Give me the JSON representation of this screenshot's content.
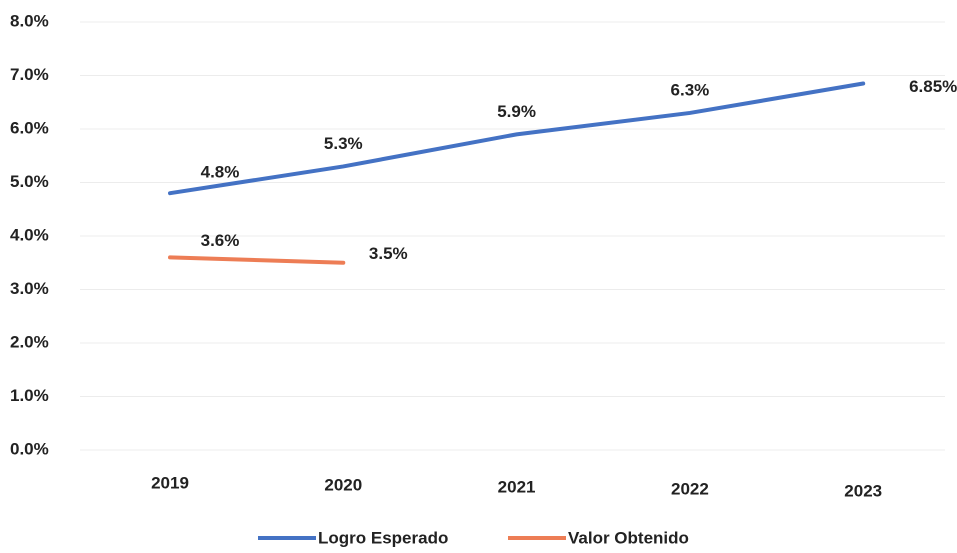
{
  "chart_data": {
    "type": "line",
    "categories": [
      "2019",
      "2020",
      "2021",
      "2022",
      "2023"
    ],
    "series": [
      {
        "name": "Logro Esperado",
        "color": "#4472c4",
        "values": [
          4.8,
          5.3,
          5.9,
          6.3,
          6.85
        ],
        "value_labels": [
          "4.8%",
          "5.3%",
          "5.9%",
          "6.3%",
          "6.85%"
        ]
      },
      {
        "name": "Valor Obtenido",
        "color": "#ed7d55",
        "values": [
          3.6,
          3.5,
          null,
          null,
          null
        ],
        "value_labels": [
          "3.6%",
          "3.5%",
          null,
          null,
          null
        ]
      }
    ],
    "ylim": [
      0,
      8
    ],
    "yticks": [
      {
        "value": 0,
        "label": "0.0%"
      },
      {
        "value": 1,
        "label": "1.0%"
      },
      {
        "value": 2,
        "label": "2.0%"
      },
      {
        "value": 3,
        "label": "3.0%"
      },
      {
        "value": 4,
        "label": "4.0%"
      },
      {
        "value": 5,
        "label": "5.0%"
      },
      {
        "value": 6,
        "label": "6.0%"
      },
      {
        "value": 7,
        "label": "7.0%"
      },
      {
        "value": 8,
        "label": "8.0%"
      }
    ],
    "grid": true,
    "legend": "bottom"
  }
}
